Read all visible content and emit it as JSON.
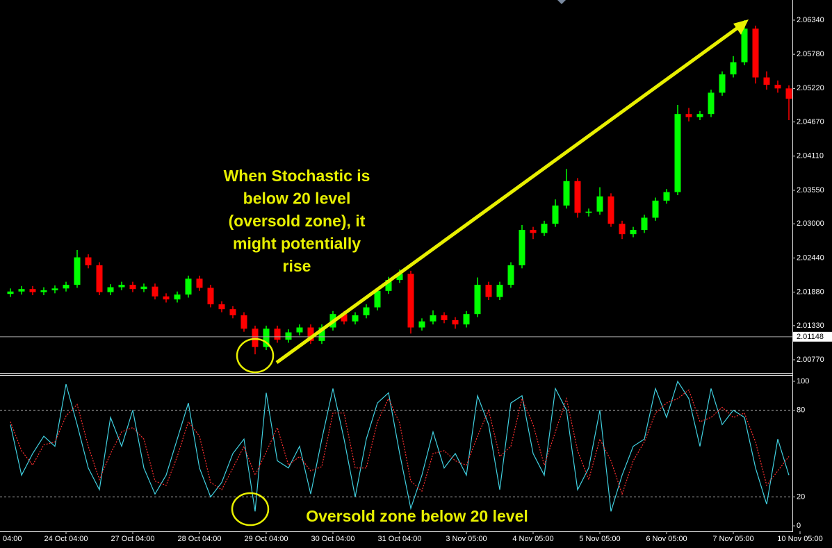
{
  "chart_data": [
    {
      "type": "candlestick",
      "x": [
        1,
        2,
        3,
        4,
        5,
        6,
        7,
        8,
        9,
        10,
        11,
        12,
        13,
        14,
        15,
        16,
        17,
        18,
        19,
        20,
        21,
        22,
        23,
        24,
        25,
        26,
        27,
        28,
        29,
        30,
        31,
        32,
        33,
        34,
        35,
        36,
        37,
        38,
        39,
        40,
        41,
        42,
        43,
        44,
        45,
        46,
        47,
        48,
        49,
        50,
        51,
        52,
        53,
        54,
        55,
        56,
        57,
        58,
        59,
        60,
        61,
        62,
        63,
        64,
        65,
        66,
        67,
        68,
        69,
        70,
        71
      ],
      "open": [
        2.0185,
        2.0189,
        2.0193,
        2.0188,
        2.0191,
        2.0194,
        2.02,
        2.0245,
        2.0232,
        2.0188,
        2.0196,
        2.02,
        2.0193,
        2.0197,
        2.0181,
        2.0176,
        2.0184,
        2.021,
        2.0195,
        2.0168,
        2.016,
        2.015,
        2.0128,
        2.0098,
        2.0128,
        2.011,
        2.0122,
        2.013,
        2.0108,
        2.013,
        2.0152,
        2.014,
        2.015,
        2.0163,
        2.019,
        2.0208,
        2.0218,
        2.013,
        2.014,
        2.015,
        2.0142,
        2.0135,
        2.0152,
        2.02,
        2.018,
        2.02,
        2.0232,
        2.029,
        2.0285,
        2.03,
        2.033,
        2.037,
        2.0318,
        2.032,
        2.0345,
        2.03,
        2.0283,
        2.029,
        2.031,
        2.0338,
        2.0352,
        2.048,
        2.0475,
        2.048,
        2.0515,
        2.0545,
        2.0565,
        2.062,
        2.054,
        2.0528,
        2.0522
      ],
      "high": [
        2.0194,
        2.0198,
        2.0198,
        2.0196,
        2.0199,
        2.0205,
        2.0257,
        2.025,
        2.0237,
        2.0201,
        2.0205,
        2.0205,
        2.0202,
        2.0202,
        2.0186,
        2.0189,
        2.0215,
        2.0215,
        2.02,
        2.0173,
        2.0165,
        2.0155,
        2.0133,
        2.0133,
        2.0133,
        2.0127,
        2.0135,
        2.0135,
        2.0135,
        2.0157,
        2.0157,
        2.0155,
        2.0168,
        2.0195,
        2.0213,
        2.0225,
        2.0223,
        2.0145,
        2.0158,
        2.0155,
        2.0147,
        2.0157,
        2.0212,
        2.0205,
        2.0205,
        2.0237,
        2.0298,
        2.0295,
        2.0305,
        2.034,
        2.039,
        2.0375,
        2.0325,
        2.036,
        2.035,
        2.0305,
        2.0295,
        2.0315,
        2.0343,
        2.0357,
        2.0495,
        2.049,
        2.0485,
        2.052,
        2.055,
        2.0575,
        2.0634,
        2.0625,
        2.055,
        2.0535,
        2.0527
      ],
      "low": [
        2.018,
        2.0184,
        2.0183,
        2.0183,
        2.0186,
        2.0189,
        2.0195,
        2.0227,
        2.0183,
        2.0183,
        2.0191,
        2.0188,
        2.0188,
        2.0176,
        2.0171,
        2.0171,
        2.0179,
        2.019,
        2.0163,
        2.0155,
        2.0145,
        2.0123,
        2.0086,
        2.0093,
        2.0105,
        2.0105,
        2.0117,
        2.0103,
        2.0103,
        2.0125,
        2.0135,
        2.0135,
        2.0145,
        2.0158,
        2.0185,
        2.0203,
        2.012,
        2.0125,
        2.0135,
        2.0137,
        2.0128,
        2.013,
        2.0147,
        2.0175,
        2.0175,
        2.0195,
        2.0227,
        2.0275,
        2.028,
        2.0295,
        2.0325,
        2.031,
        2.0312,
        2.0315,
        2.0295,
        2.0275,
        2.0278,
        2.0285,
        2.0305,
        2.0333,
        2.0347,
        2.0468,
        2.047,
        2.0475,
        2.051,
        2.054,
        2.056,
        2.053,
        2.052,
        2.0515,
        2.047
      ],
      "close": [
        2.0189,
        2.0193,
        2.0188,
        2.0191,
        2.0194,
        2.02,
        2.0245,
        2.0232,
        2.0188,
        2.0196,
        2.02,
        2.0193,
        2.0197,
        2.0181,
        2.0176,
        2.0184,
        2.021,
        2.0195,
        2.0168,
        2.016,
        2.015,
        2.0128,
        2.0098,
        2.0128,
        2.011,
        2.0122,
        2.013,
        2.0108,
        2.013,
        2.0152,
        2.014,
        2.015,
        2.0163,
        2.019,
        2.0208,
        2.0218,
        2.013,
        2.014,
        2.015,
        2.0142,
        2.0135,
        2.0152,
        2.02,
        2.018,
        2.02,
        2.0232,
        2.029,
        2.0285,
        2.03,
        2.033,
        2.037,
        2.0318,
        2.032,
        2.0345,
        2.03,
        2.0283,
        2.029,
        2.031,
        2.0338,
        2.0352,
        2.048,
        2.0475,
        2.048,
        2.0515,
        2.0545,
        2.0565,
        2.062,
        2.054,
        2.0528,
        2.0522,
        2.0505
      ],
      "up_color": "#00ff00",
      "down_color": "#ff0000",
      "xlim": [
        0.0625,
        71.3125
      ],
      "ylim": [
        2.00554,
        2.0667
      ],
      "yticks": [
        {
          "value": 2.0634,
          "label": "2.06340"
        },
        {
          "value": 2.0578,
          "label": "2.05780"
        },
        {
          "value": 2.0522,
          "label": "2.05220"
        },
        {
          "value": 2.0467,
          "label": "2.04670"
        },
        {
          "value": 2.0411,
          "label": "2.04110"
        },
        {
          "value": 2.0355,
          "label": "2.03550"
        },
        {
          "value": 2.03,
          "label": "2.03000"
        },
        {
          "value": 2.0244,
          "label": "2.02440"
        },
        {
          "value": 2.0188,
          "label": "2.01880"
        },
        {
          "value": 2.0133,
          "label": "2.01330"
        },
        {
          "value": 2.0077,
          "label": "2.00770"
        }
      ],
      "current_price": {
        "value": 2.01148,
        "label": "2.01148"
      },
      "annotation": [
        "When Stochastic is",
        "below 20 level",
        "(oversold zone), it",
        "might potentially",
        "rise"
      ]
    },
    {
      "type": "line",
      "x": [
        1,
        2,
        3,
        4,
        5,
        6,
        7,
        8,
        9,
        10,
        11,
        12,
        13,
        14,
        15,
        16,
        17,
        18,
        19,
        20,
        21,
        22,
        23,
        24,
        25,
        26,
        27,
        28,
        29,
        30,
        31,
        32,
        33,
        34,
        35,
        36,
        37,
        38,
        39,
        40,
        41,
        42,
        43,
        44,
        45,
        46,
        47,
        48,
        49,
        50,
        51,
        52,
        53,
        54,
        55,
        56,
        57,
        58,
        59,
        60,
        61,
        62,
        63,
        64,
        65,
        66,
        67,
        68,
        69,
        70,
        71
      ],
      "series": [
        {
          "color": "#40d0e0",
          "values": [
            70,
            35,
            50,
            62,
            55,
            98,
            70,
            40,
            25,
            75,
            55,
            80,
            40,
            22,
            35,
            60,
            85,
            40,
            20,
            30,
            50,
            60,
            10,
            92,
            45,
            40,
            55,
            22,
            60,
            95,
            60,
            20,
            60,
            85,
            92,
            50,
            12,
            35,
            65,
            40,
            50,
            35,
            90,
            70,
            25,
            85,
            90,
            50,
            35,
            95,
            80,
            25,
            40,
            80,
            10,
            35,
            55,
            60,
            95,
            75,
            100,
            88,
            55,
            95,
            70,
            80,
            75,
            40,
            15,
            60,
            35
          ]
        },
        {
          "color": "#ff3030",
          "values": [
            72,
            52,
            42,
            56,
            58,
            76,
            84,
            55,
            32,
            50,
            65,
            68,
            60,
            31,
            28,
            48,
            72,
            62,
            30,
            25,
            40,
            55,
            35,
            51,
            68,
            42,
            48,
            38,
            41,
            78,
            78,
            40,
            40,
            72,
            88,
            71,
            31,
            24,
            50,
            52,
            45,
            42,
            62,
            80,
            48,
            55,
            88,
            70,
            42,
            65,
            88,
            52,
            32,
            60,
            45,
            22,
            45,
            58,
            78,
            85,
            88,
            94,
            72,
            75,
            82,
            75,
            78,
            58,
            28,
            38,
            48
          ]
        }
      ],
      "xlim": [
        0.0625,
        71.3125
      ],
      "ylim": [
        -3.8,
        104.3
      ],
      "yticks": [
        100,
        80,
        20,
        0
      ],
      "levels": [
        80,
        20
      ],
      "xticks": [
        {
          "value": 0,
          "label": "04:00"
        },
        {
          "value": 6,
          "label": "24 Oct 04:00"
        },
        {
          "value": 12,
          "label": "27 Oct 04:00"
        },
        {
          "value": 18,
          "label": "28 Oct 04:00"
        },
        {
          "value": 24,
          "label": "29 Oct 04:00"
        },
        {
          "value": 30,
          "label": "30 Oct 04:00"
        },
        {
          "value": 36,
          "label": "31 Oct 04:00"
        },
        {
          "value": 42,
          "label": "3 Nov 05:00"
        },
        {
          "value": 48,
          "label": "4 Nov 05:00"
        },
        {
          "value": 54,
          "label": "5 Nov 05:00"
        },
        {
          "value": 60,
          "label": "6 Nov 05:00"
        },
        {
          "value": 66,
          "label": "7 Nov 05:00"
        },
        {
          "value": 72,
          "label": "10 Nov 05:00"
        }
      ],
      "annotation": "Oversold zone below 20 level"
    }
  ]
}
